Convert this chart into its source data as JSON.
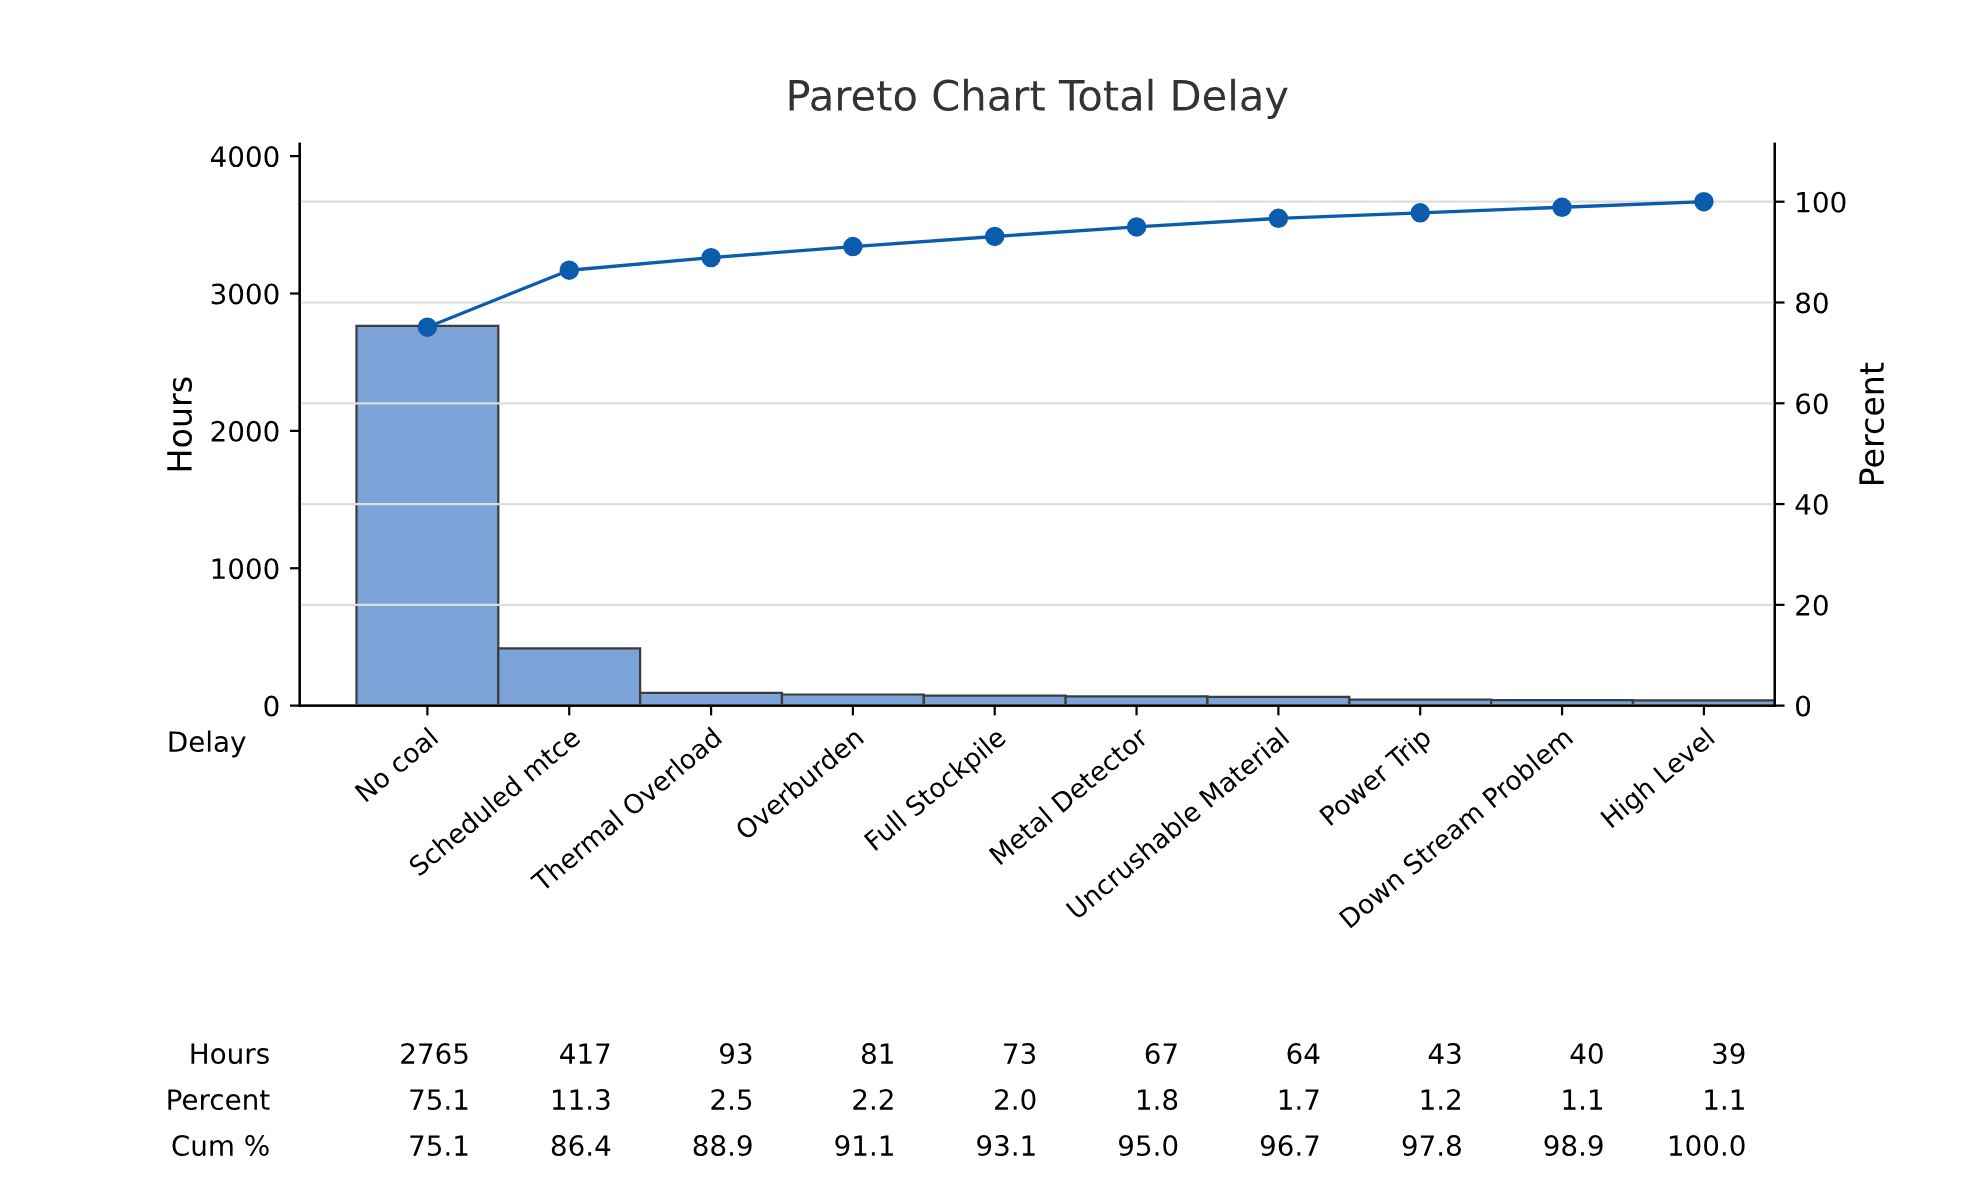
{
  "chart_data": {
    "type": "bar",
    "title": "Pareto Chart Total Delay",
    "xlabel": "Delay",
    "ylabel": "Hours",
    "y2label": "Percent",
    "categories": [
      "No coal",
      "Scheduled mtce",
      "Thermal Overload",
      "Overburden",
      "Full Stockpile",
      "Metal Detector",
      "Uncrushable Material",
      "Power Trip",
      "Down Stream Problem",
      "High Level"
    ],
    "series": [
      {
        "color": "#7ba3d8",
        "values": [
          2765,
          417,
          93,
          81,
          73,
          67,
          64,
          43,
          40,
          39
        ],
        "value_labels": [
          "2765",
          "417",
          "93",
          "81",
          "73",
          "67",
          "64",
          "43",
          "40",
          "39"
        ]
      },
      {
        "type": "line",
        "axis": "y2",
        "color": "#0b5cad",
        "marker": "circle",
        "values": [
          75.1,
          86.4,
          88.9,
          91.1,
          93.1,
          95.0,
          96.7,
          97.8,
          98.9,
          100.0
        ],
        "value_labels": [
          "75.1",
          "86.4",
          "88.9",
          "91.1",
          "93.1",
          "95.0",
          "96.7",
          "97.8",
          "98.9",
          "100.0"
        ]
      }
    ],
    "annotations": [
      "Hours",
      "Percent",
      "Cum %",
      "75.1",
      "11.3",
      "2.5",
      "2.2",
      "2.0",
      "1.8",
      "1.7",
      "1.2",
      "1.1",
      "1.1"
    ],
    "ylim": [
      0,
      4090
    ],
    "yticks": [
      0,
      1000,
      2000,
      3000,
      4000
    ],
    "y2lim": [
      0,
      111.5
    ],
    "y2ticks": [
      0,
      20,
      40,
      60,
      80,
      100
    ],
    "grid": true
  }
}
